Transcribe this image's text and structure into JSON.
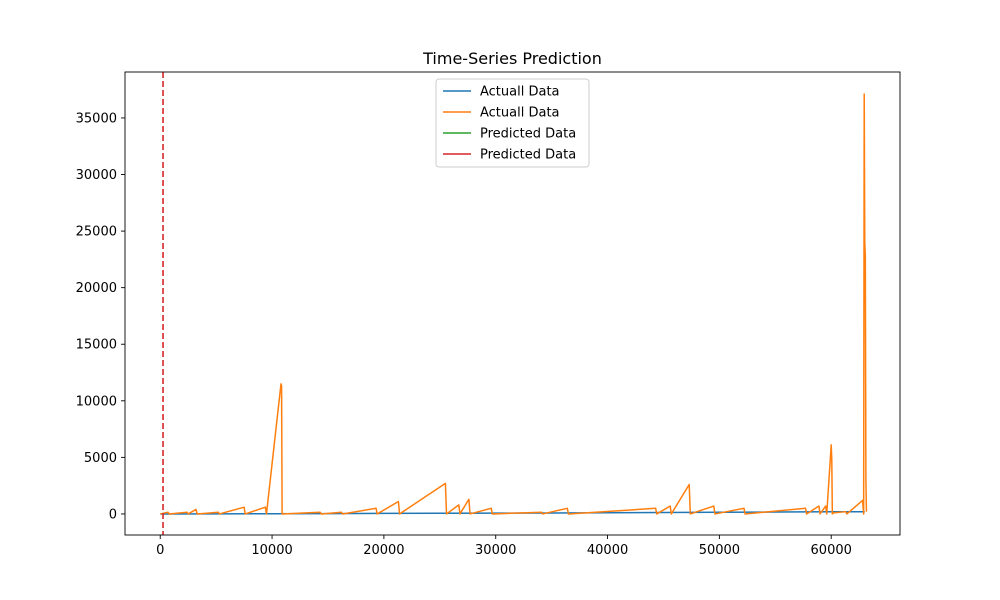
{
  "chart_data": {
    "type": "line",
    "title": "Time-Series Prediction",
    "xlabel": "",
    "ylabel": "",
    "xlim": [
      -3150,
      66150
    ],
    "ylim": [
      -1860,
      39060
    ],
    "x_ticks": [
      0,
      10000,
      20000,
      30000,
      40000,
      50000,
      60000
    ],
    "y_ticks": [
      0,
      5000,
      10000,
      15000,
      20000,
      25000,
      30000,
      35000
    ],
    "grid": false,
    "legend_position": "upper center",
    "vline": {
      "x": 250,
      "color": "#d62728",
      "style": "dashed"
    },
    "series": [
      {
        "name": "Actuall Data",
        "color": "#1f77b4",
        "x": [
          0,
          5000,
          10000,
          15000,
          20000,
          25000,
          30000,
          35000,
          40000,
          45000,
          50000,
          55000,
          60000,
          63000
        ],
        "y": [
          0,
          10,
          20,
          30,
          50,
          60,
          70,
          90,
          110,
          130,
          150,
          170,
          190,
          200
        ]
      },
      {
        "name": "Actuall Data",
        "color": "#ff7f0e",
        "x": [
          0,
          700,
          800,
          2400,
          2500,
          3200,
          3300,
          5200,
          5300,
          7500,
          7600,
          9400,
          9500,
          10800,
          10850,
          10900,
          14300,
          14400,
          16200,
          16300,
          19300,
          19400,
          21300,
          21400,
          25500,
          25600,
          26700,
          26800,
          27600,
          27700,
          29600,
          29700,
          34100,
          34200,
          36400,
          36500,
          44300,
          44400,
          45600,
          45700,
          47300,
          47400,
          49500,
          49600,
          52200,
          52300,
          57700,
          57800,
          58900,
          59000,
          59500,
          59600,
          60000,
          60050,
          60100,
          60200,
          61300,
          61400,
          62800,
          62900,
          62950,
          63000,
          63050,
          63100,
          63150
        ],
        "y": [
          0,
          150,
          0,
          150,
          0,
          400,
          0,
          150,
          0,
          600,
          0,
          600,
          0,
          11500,
          11300,
          0,
          150,
          0,
          150,
          0,
          500,
          0,
          1100,
          0,
          2700,
          0,
          800,
          0,
          1300,
          0,
          500,
          0,
          150,
          0,
          500,
          0,
          500,
          0,
          700,
          0,
          2600,
          0,
          700,
          0,
          500,
          0,
          500,
          0,
          700,
          0,
          700,
          0,
          6100,
          4800,
          0,
          100,
          200,
          0,
          1200,
          0,
          37100,
          24000,
          22800,
          3200,
          200
        ]
      },
      {
        "name": "Predicted Data",
        "color": "#2ca02c",
        "x": [],
        "y": []
      },
      {
        "name": "Predicted Data",
        "color": "#d62728",
        "x": [],
        "y": []
      }
    ]
  }
}
